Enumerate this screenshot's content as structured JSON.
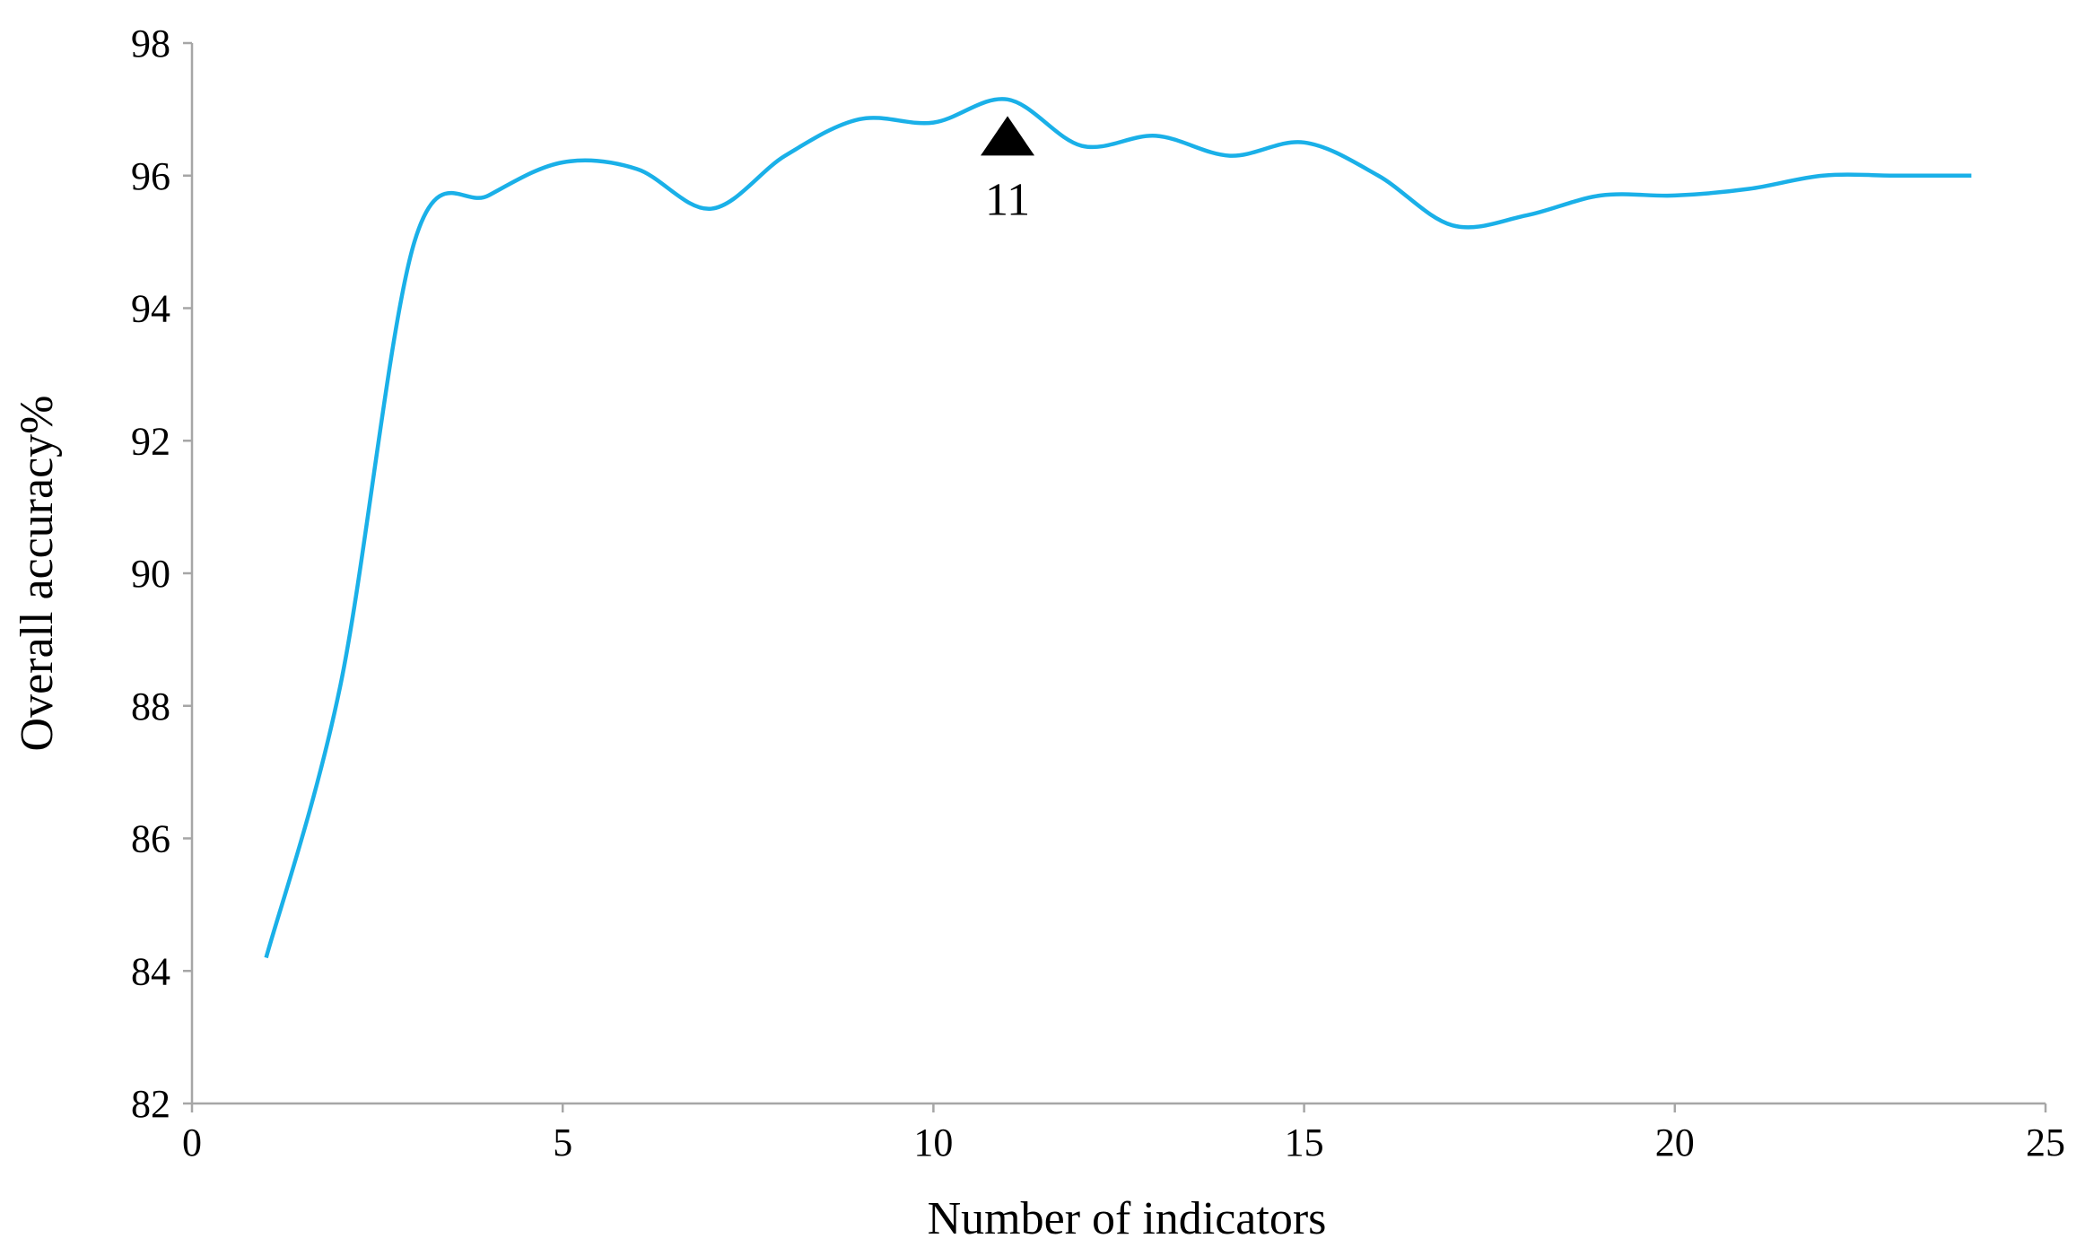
{
  "chart_data": {
    "type": "line",
    "x_label": "Number of indicators",
    "y_label": "Overall accuracy%",
    "x": [
      1,
      2,
      3,
      4,
      5,
      6,
      7,
      8,
      9,
      10,
      11,
      12,
      13,
      14,
      15,
      16,
      17,
      18,
      19,
      20,
      21,
      22,
      23,
      24
    ],
    "series": [
      {
        "color": "#1ab0e8",
        "values": [
          84.2,
          88.3,
          95.0,
          95.7,
          96.2,
          96.1,
          95.5,
          96.3,
          96.85,
          96.8,
          97.15,
          96.45,
          96.6,
          96.3,
          96.5,
          96.0,
          95.25,
          95.4,
          95.7,
          95.7,
          95.8,
          96.0,
          96.0,
          96.0
        ]
      }
    ],
    "xlim": [
      0,
      25
    ],
    "xticks": [
      0,
      5,
      10,
      15,
      20,
      25
    ],
    "ylim": [
      82,
      98
    ],
    "yticks": [
      82,
      84,
      86,
      88,
      90,
      92,
      94,
      96,
      98
    ],
    "smooth": true,
    "annotations": [
      {
        "x": 11,
        "y": 96.6,
        "text": "11"
      }
    ]
  }
}
